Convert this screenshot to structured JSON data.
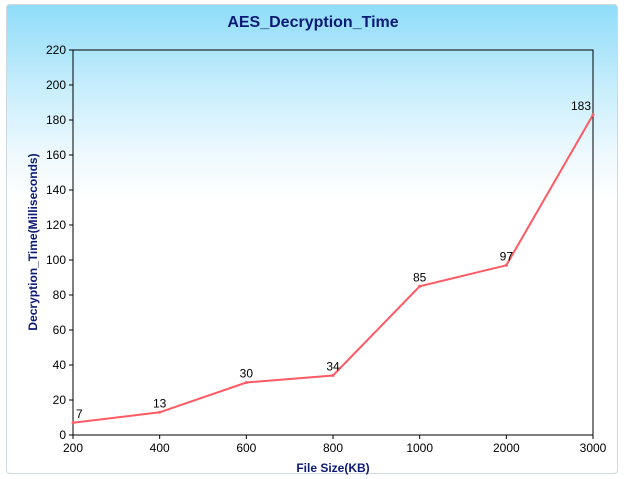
{
  "chart_data": {
    "type": "line",
    "title": "AES_Decryption_Time",
    "xlabel": "File Size(KB)",
    "ylabel": "Decryption_Time(Milliseconds)",
    "categories": [
      "200",
      "400",
      "600",
      "800",
      "1000",
      "2000",
      "3000"
    ],
    "series": [
      {
        "values": [
          7,
          13,
          30,
          34,
          85,
          97,
          183
        ]
      }
    ],
    "ylim": [
      0,
      220
    ],
    "yticks": [
      0,
      20,
      40,
      60,
      80,
      100,
      120,
      140,
      160,
      180,
      200,
      220
    ],
    "grid": false,
    "data_labels": true,
    "colors": {
      "line": "#ff5a64",
      "background_top": "#8fdcf9",
      "background_bottom": "#ffffff",
      "title": "#0b1a73"
    }
  }
}
